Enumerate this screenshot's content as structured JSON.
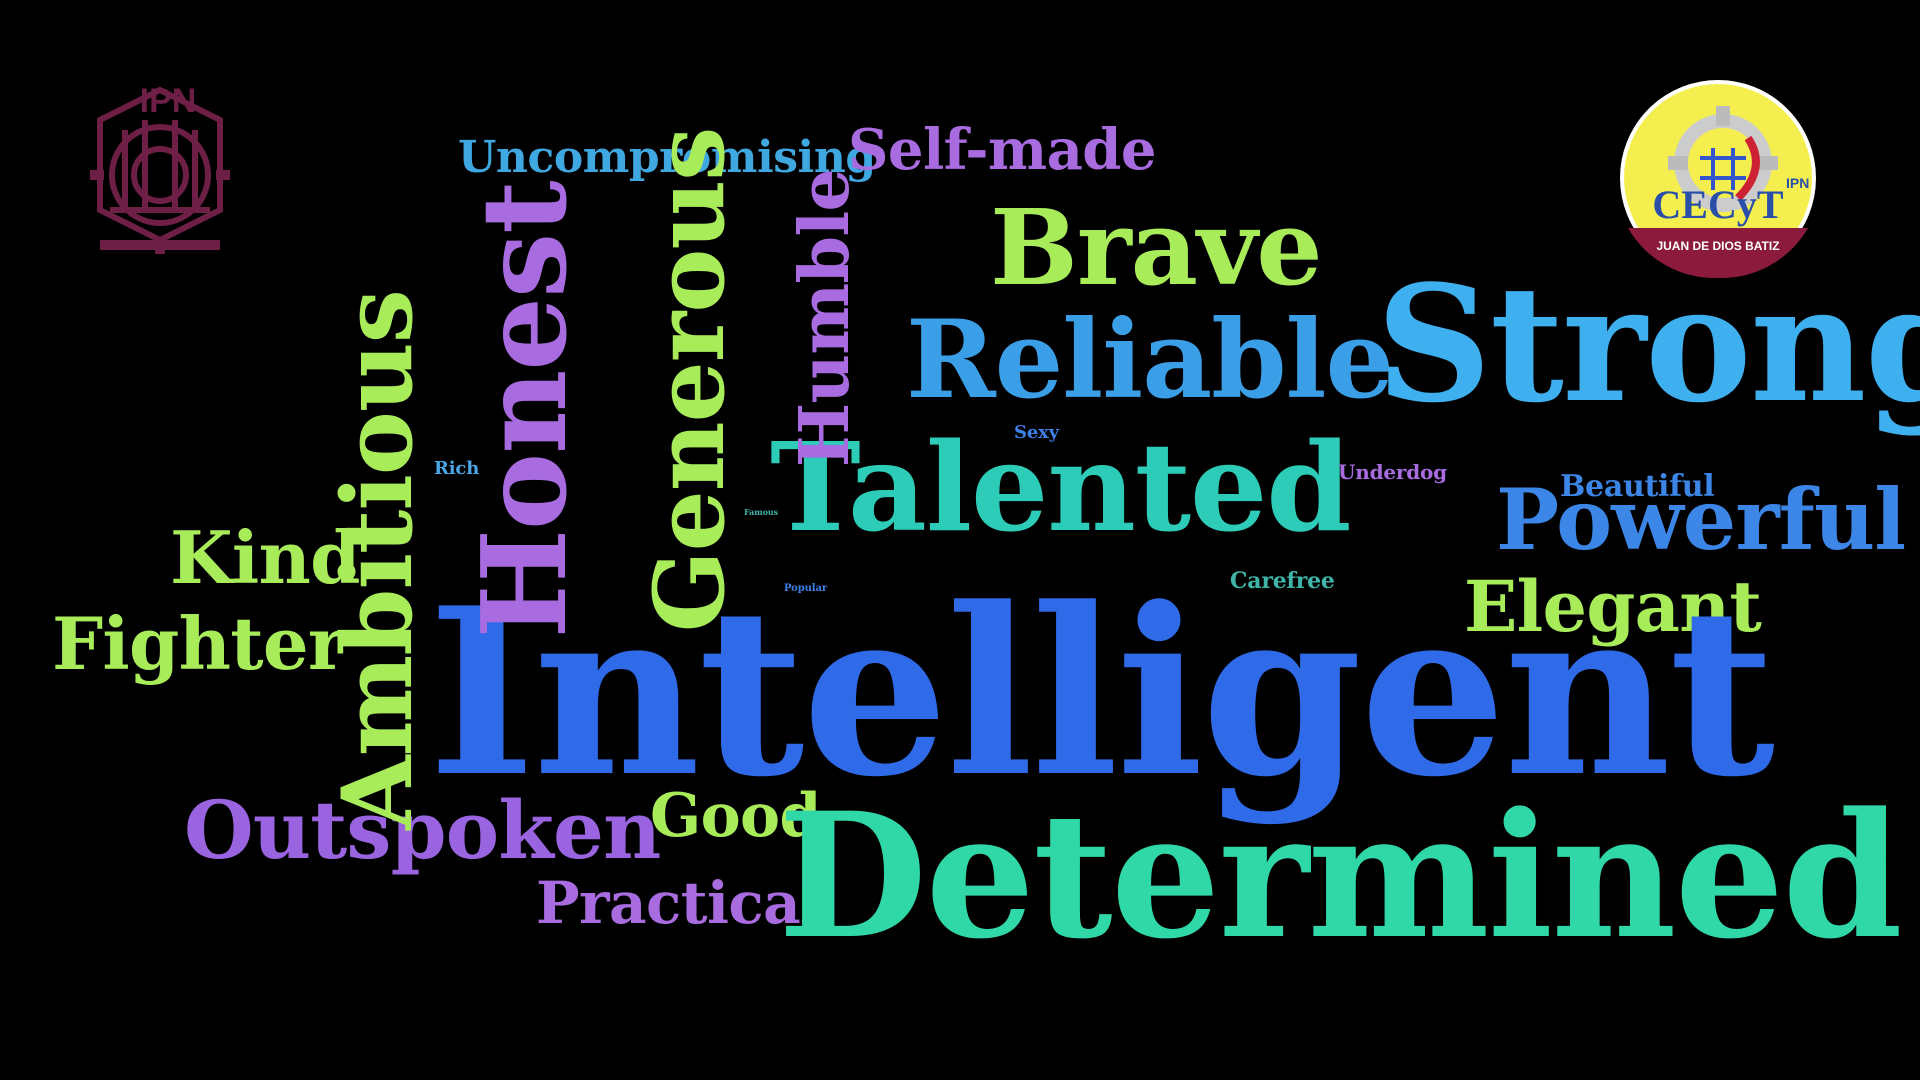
{
  "colors": {
    "background": "#000000",
    "ipn_maroon": "#6e1f46",
    "seal_yellow": "#f4ef4f",
    "seal_ring": "#8b1a3c"
  },
  "logos": {
    "left": {
      "icon": "ipn-emblem-icon",
      "text": "IPN"
    },
    "right": {
      "icon": "cecyt-seal-icon",
      "letters": "CECyT",
      "side_text": "IPN",
      "ring_text": "JUAN DE DIOS BATIZ"
    }
  },
  "words": {
    "uncompromising": "Uncompromising",
    "self_made": "Self-made",
    "brave": "Brave",
    "reliable": "Reliable",
    "strong": "Strong",
    "honest": "Honest",
    "generous": "Generous",
    "humble": "Humble",
    "ambitious": "Ambitious",
    "rich": "Rich",
    "sexy": "Sexy",
    "talented": "Talented",
    "underdog": "Underdog",
    "beautiful": "Beautiful",
    "powerful": "Powerful",
    "famous": "Famous",
    "popular": "Popular",
    "carefree": "Carefree",
    "elegant": "Elegant",
    "kind": "Kind",
    "fighter": "Fighter",
    "intelligent": "Intelligent",
    "outspoken": "Outspoken",
    "good": "Good",
    "practical": "Practical",
    "determined": "Determined"
  }
}
